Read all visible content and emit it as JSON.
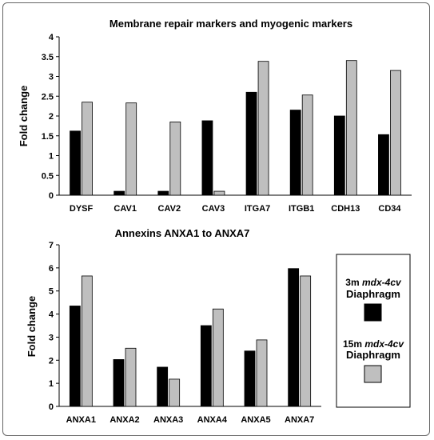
{
  "chart_data": [
    {
      "type": "bar",
      "title": "Membrane repair markers and myogenic markers",
      "ylabel": "Fold change",
      "ylim": [
        0,
        4
      ],
      "yticks": [
        "0",
        "0.5",
        "1",
        "1.5",
        "2",
        "2.5",
        "3",
        "3.5",
        "4"
      ],
      "categories": [
        "DYSF",
        "CAV1",
        "CAV2",
        "CAV3",
        "ITGA7",
        "ITGB1",
        "CDH13",
        "CD34"
      ],
      "series": [
        {
          "name": "3m mdx-4cv Diaphragm",
          "color": "#000000",
          "values": [
            1.62,
            0.1,
            0.1,
            1.88,
            2.6,
            2.15,
            2.0,
            1.53
          ]
        },
        {
          "name": "15m mdx-4cv Diaphragm",
          "color": "#bfbfbf",
          "values": [
            2.35,
            2.33,
            1.85,
            0.1,
            3.38,
            2.53,
            3.4,
            3.15
          ]
        }
      ]
    },
    {
      "type": "bar",
      "title": "Annexins ANXA1 to ANXA7",
      "ylabel": "Fold change",
      "ylim": [
        0,
        7
      ],
      "yticks": [
        "0",
        "1",
        "2",
        "3",
        "4",
        "5",
        "6",
        "7"
      ],
      "categories": [
        "ANXA1",
        "ANXA2",
        "ANXA3",
        "ANXA4",
        "ANXA5",
        "ANXA7"
      ],
      "series": [
        {
          "name": "3m mdx-4cv Diaphragm",
          "color": "#000000",
          "values": [
            4.35,
            2.03,
            1.7,
            3.5,
            2.4,
            5.97
          ]
        },
        {
          "name": "15m mdx-4cv Diaphragm",
          "color": "#bfbfbf",
          "values": [
            5.65,
            2.52,
            1.18,
            4.22,
            2.88,
            5.65
          ]
        }
      ]
    }
  ],
  "legend": {
    "items": [
      {
        "line1_prefix": "3m ",
        "line1_italic": "mdx-4cv",
        "line2": "Diaphragm",
        "color": "#000000"
      },
      {
        "line1_prefix": "15m ",
        "line1_italic": "mdx-4cv",
        "line2": "Diaphragm",
        "color": "#bfbfbf"
      }
    ]
  }
}
